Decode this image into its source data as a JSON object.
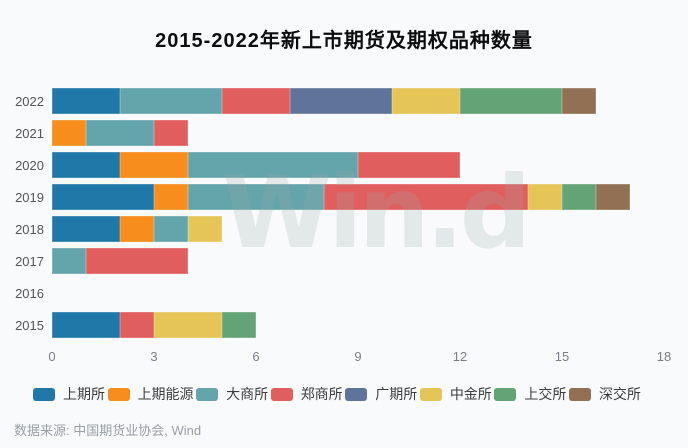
{
  "title": "2015-2022年新上市期货及期权品种数量",
  "watermark": "Win.d",
  "source": "数据来源: 中国期货业协会, Wind",
  "chart_data": {
    "type": "bar",
    "orientation": "horizontal",
    "stacked": true,
    "title": "2015-2022年新上市期货及期权品种数量",
    "xlabel": "",
    "ylabel": "",
    "xlim": [
      0,
      18
    ],
    "xticks": [
      0,
      3,
      6,
      9,
      12,
      15,
      18
    ],
    "grid": false,
    "legend_position": "bottom",
    "categories": [
      "2022",
      "2021",
      "2020",
      "2019",
      "2018",
      "2017",
      "2016",
      "2015"
    ],
    "series": [
      {
        "name": "上期所",
        "color": "#1F78A8",
        "values": [
          2,
          0,
          2,
          3,
          2,
          0,
          0,
          2
        ]
      },
      {
        "name": "上期能源",
        "color": "#F68D1C",
        "values": [
          0,
          1,
          2,
          1,
          1,
          0,
          0,
          0
        ]
      },
      {
        "name": "大商所",
        "color": "#64A5AC",
        "values": [
          3,
          2,
          5,
          4,
          1,
          1,
          0,
          0
        ]
      },
      {
        "name": "郑商所",
        "color": "#E05E5E",
        "values": [
          2,
          1,
          3,
          6,
          0,
          3,
          0,
          1
        ]
      },
      {
        "name": "广期所",
        "color": "#60749B",
        "values": [
          3,
          0,
          0,
          0,
          0,
          0,
          0,
          0
        ]
      },
      {
        "name": "中金所",
        "color": "#E5C558",
        "values": [
          2,
          0,
          0,
          1,
          1,
          0,
          0,
          2
        ]
      },
      {
        "name": "上交所",
        "color": "#63A376",
        "values": [
          3,
          0,
          0,
          1,
          0,
          0,
          0,
          1
        ]
      },
      {
        "name": "深交所",
        "color": "#927053",
        "values": [
          1,
          0,
          0,
          1,
          0,
          0,
          0,
          0
        ]
      }
    ],
    "totals": [
      16,
      4,
      12,
      17,
      5,
      4,
      0,
      6
    ]
  }
}
